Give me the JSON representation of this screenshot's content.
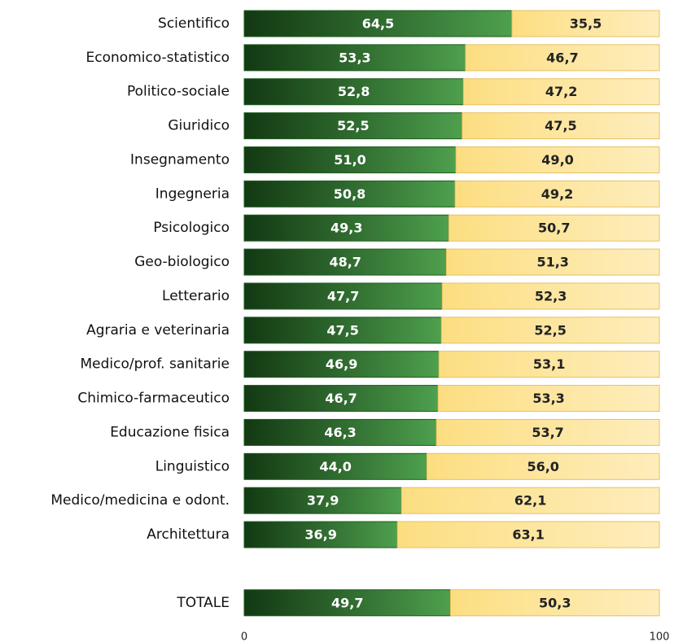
{
  "chart_data": {
    "type": "stacked-barh",
    "categories": [
      "Scientifico",
      "Economico-statistico",
      "Politico-sociale",
      "Giuridico",
      "Insegnamento",
      "Ingegneria",
      "Psicologico",
      "Geo-biologico",
      "Letterario",
      "Agraria e veterinaria",
      "Medico/prof. sanitarie",
      "Chimico-farmaceutico",
      "Educazione fisica",
      "Linguistico",
      "Medico/medicina e odont.",
      "Architettura",
      null,
      "TOTALE"
    ],
    "series": [
      {
        "color": "#2f8f2f",
        "values": [
          64.5,
          53.3,
          52.8,
          52.5,
          51.0,
          50.8,
          49.3,
          48.7,
          47.7,
          47.5,
          46.9,
          46.7,
          46.3,
          44.0,
          37.9,
          36.9,
          null,
          49.7
        ],
        "value_labels": [
          "64,5",
          "53,3",
          "52,8",
          "52,5",
          "51,0",
          "50,8",
          "49,3",
          "48,7",
          "47,7",
          "47,5",
          "46,9",
          "46,7",
          "46,3",
          "44,0",
          "37,9",
          "36,9",
          null,
          "49,7"
        ]
      },
      {
        "color": "#fcd86a",
        "values": [
          35.5,
          46.7,
          47.2,
          47.5,
          49.0,
          49.2,
          50.7,
          51.3,
          52.3,
          52.5,
          53.1,
          53.3,
          53.7,
          56.0,
          62.1,
          63.1,
          null,
          50.3
        ],
        "value_labels": [
          "35,5",
          "46,7",
          "47,2",
          "47,5",
          "49,0",
          "49,2",
          "50,7",
          "51,3",
          "52,3",
          "52,5",
          "53,1",
          "53,3",
          "53,7",
          "56,0",
          "62,1",
          "63,1",
          null,
          "50,3"
        ]
      }
    ],
    "xlim": [
      0,
      100
    ],
    "xticks": [
      0,
      100
    ]
  }
}
